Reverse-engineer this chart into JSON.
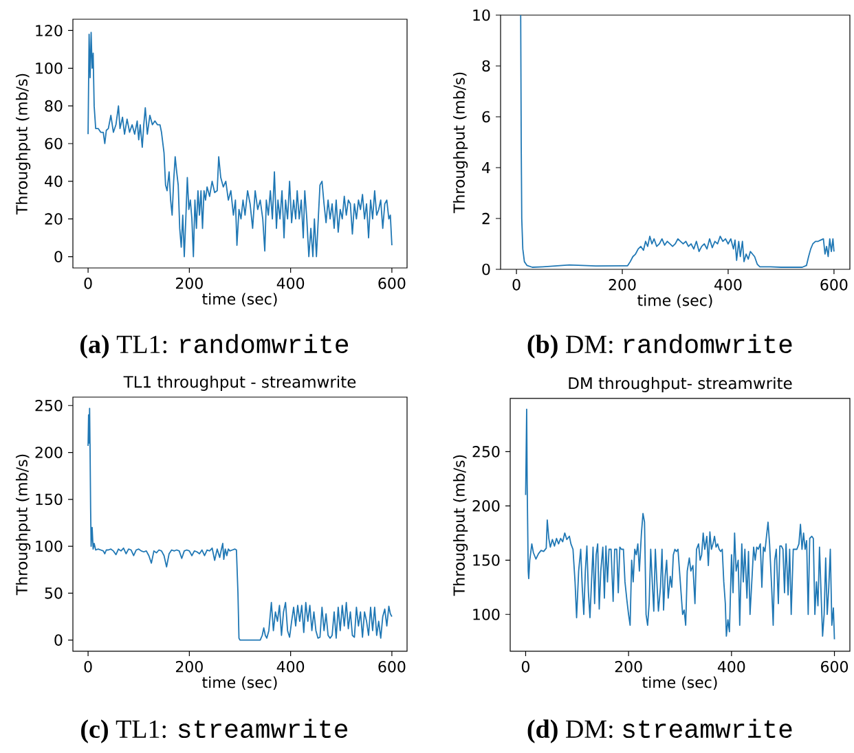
{
  "chart_data": [
    {
      "type": "line",
      "xlabel": "time (sec)",
      "ylabel": "Throughput (mb/s)",
      "color": "#1f77b4",
      "xlim": [
        -30,
        630
      ],
      "ylim": [
        -6,
        126
      ],
      "xticks": [
        0,
        200,
        400,
        600
      ],
      "yticks": [
        0,
        20,
        40,
        60,
        80,
        100,
        120
      ],
      "annotations": [
        "**(a)** TL1:",
        "randomwrite"
      ],
      "x": [
        0,
        2,
        4,
        6,
        8,
        10,
        12,
        15,
        20,
        25,
        30,
        33,
        36,
        40,
        45,
        50,
        55,
        60,
        63,
        68,
        72,
        77,
        82,
        87,
        92,
        97,
        100,
        103,
        107,
        110,
        113,
        117,
        122,
        127,
        132,
        137,
        142,
        145,
        150,
        153,
        156,
        160,
        163,
        166,
        169,
        172,
        175,
        178,
        181,
        184,
        187,
        190,
        193,
        196,
        199,
        202,
        205,
        208,
        211,
        214,
        217,
        220,
        223,
        226,
        229,
        232,
        235,
        240,
        245,
        250,
        255,
        258,
        262,
        267,
        272,
        277,
        282,
        287,
        291,
        294,
        298,
        302,
        306,
        310,
        315,
        320,
        325,
        330,
        335,
        340,
        345,
        349,
        352,
        356,
        360,
        364,
        368,
        372,
        375,
        379,
        383,
        387,
        390,
        394,
        398,
        402,
        406,
        410,
        413,
        417,
        421,
        425,
        428,
        432,
        436,
        440,
        444,
        447,
        451,
        455,
        458,
        462,
        466,
        470,
        474,
        478,
        482,
        486,
        490,
        494,
        498,
        502,
        506,
        510,
        514,
        518,
        522,
        526,
        530,
        534,
        538,
        542,
        546,
        550,
        554,
        558,
        562,
        566,
        570,
        574,
        578,
        582,
        586,
        590,
        594,
        597,
        600
      ],
      "values": [
        65,
        118,
        95,
        119,
        100,
        108,
        80,
        68,
        68,
        66,
        66,
        60,
        67,
        68,
        75,
        66,
        70,
        80,
        68,
        74,
        65,
        73,
        66,
        70,
        65,
        72,
        62,
        70,
        58,
        70,
        79,
        65,
        75,
        70,
        72,
        70,
        70,
        66,
        55,
        38,
        35,
        45,
        30,
        22,
        40,
        53,
        45,
        38,
        15,
        5,
        22,
        0,
        20,
        42,
        25,
        30,
        20,
        0,
        30,
        15,
        35,
        22,
        35,
        15,
        35,
        30,
        37,
        32,
        40,
        34,
        35,
        53,
        42,
        37,
        40,
        30,
        35,
        22,
        30,
        6,
        25,
        20,
        30,
        22,
        35,
        28,
        15,
        35,
        25,
        30,
        20,
        3,
        30,
        22,
        35,
        20,
        45,
        15,
        30,
        20,
        35,
        10,
        30,
        20,
        40,
        18,
        30,
        20,
        35,
        20,
        30,
        10,
        35,
        20,
        0,
        15,
        0,
        20,
        0,
        22,
        38,
        40,
        28,
        18,
        30,
        20,
        28,
        15,
        30,
        13,
        25,
        20,
        32,
        22,
        30,
        28,
        12,
        28,
        20,
        30,
        25,
        33,
        20,
        28,
        10,
        30,
        20,
        35,
        22,
        25,
        30,
        15,
        28,
        30,
        20,
        22,
        6
      ]
    },
    {
      "type": "line",
      "xlabel": "time (sec)",
      "ylabel": "Throughput (mb/s)",
      "color": "#1f77b4",
      "xlim": [
        -30,
        630
      ],
      "ylim": [
        0,
        10
      ],
      "xticks": [
        0,
        200,
        400,
        600
      ],
      "yticks": [
        0,
        2,
        4,
        6,
        8,
        10
      ],
      "annotations": [
        "**(b)** DM:",
        "randomwrite"
      ],
      "x": [
        8,
        9,
        10,
        12,
        15,
        20,
        30,
        50,
        100,
        150,
        200,
        210,
        215,
        220,
        225,
        230,
        235,
        240,
        244,
        248,
        252,
        256,
        260,
        265,
        270,
        275,
        280,
        285,
        290,
        295,
        300,
        305,
        310,
        315,
        320,
        325,
        330,
        335,
        340,
        345,
        350,
        355,
        360,
        365,
        370,
        375,
        380,
        385,
        390,
        395,
        400,
        405,
        410,
        413,
        416,
        420,
        423,
        427,
        430,
        434,
        438,
        442,
        446,
        450,
        455,
        460,
        480,
        500,
        520,
        540,
        548,
        552,
        556,
        560,
        565,
        570,
        575,
        580,
        583,
        586,
        589,
        592,
        595,
        598,
        600
      ],
      "values": [
        10,
        5,
        2,
        0.8,
        0.3,
        0.15,
        0.08,
        0.1,
        0.17,
        0.13,
        0.14,
        0.14,
        0.3,
        0.5,
        0.6,
        0.8,
        0.9,
        0.75,
        1.1,
        0.9,
        1.3,
        1.0,
        1.2,
        0.9,
        1.0,
        1.2,
        0.95,
        1.1,
        1.0,
        0.9,
        1.0,
        1.2,
        1.1,
        1.0,
        1.1,
        0.9,
        1.0,
        0.8,
        1.1,
        0.7,
        0.9,
        1.0,
        0.8,
        1.2,
        0.85,
        1.1,
        1.0,
        1.3,
        1.1,
        1.2,
        1.0,
        1.2,
        0.8,
        1.15,
        0.35,
        1.1,
        0.5,
        1.1,
        0.3,
        0.6,
        0.4,
        0.7,
        0.6,
        0.5,
        0.2,
        0.1,
        0.1,
        0.08,
        0.08,
        0.08,
        0.15,
        0.5,
        0.8,
        1.0,
        1.1,
        1.1,
        1.15,
        1.2,
        0.6,
        0.9,
        0.5,
        1.2,
        0.7,
        1.2,
        0.7
      ]
    },
    {
      "type": "line",
      "title": "TL1 throughput - streamwrite",
      "xlabel": "time (sec)",
      "ylabel": "Throughput (mb/s)",
      "color": "#1f77b4",
      "xlim": [
        -30,
        630
      ],
      "ylim": [
        -12,
        259
      ],
      "xticks": [
        0,
        200,
        400,
        600
      ],
      "yticks": [
        0,
        50,
        100,
        150,
        200,
        250
      ],
      "annotations": [
        "**(c)** TL1:",
        "streamwrite"
      ],
      "x": [
        0,
        1,
        2,
        3,
        4,
        5,
        6,
        8,
        10,
        12,
        15,
        20,
        25,
        30,
        33,
        36,
        40,
        45,
        50,
        55,
        60,
        65,
        70,
        75,
        80,
        85,
        90,
        95,
        100,
        105,
        110,
        115,
        120,
        125,
        130,
        135,
        140,
        145,
        150,
        155,
        160,
        165,
        170,
        175,
        180,
        185,
        190,
        195,
        200,
        205,
        210,
        215,
        220,
        225,
        230,
        235,
        240,
        245,
        250,
        255,
        260,
        263,
        266,
        268,
        271,
        274,
        277,
        280,
        285,
        290,
        293,
        296,
        298,
        300,
        320,
        340,
        344,
        347,
        350,
        353,
        357,
        362,
        366,
        370,
        374,
        378,
        382,
        386,
        390,
        394,
        398,
        402,
        406,
        410,
        414,
        418,
        422,
        426,
        430,
        434,
        438,
        442,
        446,
        450,
        454,
        458,
        462,
        466,
        470,
        474,
        478,
        482,
        486,
        490,
        494,
        498,
        502,
        506,
        510,
        514,
        518,
        522,
        526,
        530,
        534,
        538,
        542,
        546,
        550,
        554,
        558,
        562,
        566,
        570,
        574,
        578,
        582,
        586,
        590,
        594,
        597,
        600
      ],
      "values": [
        207,
        240,
        210,
        247,
        200,
        140,
        100,
        120,
        97,
        103,
        96,
        97,
        96,
        95,
        92,
        96,
        96,
        97,
        95,
        91,
        97,
        95,
        98,
        92,
        97,
        96,
        90,
        96,
        97,
        95,
        94,
        95,
        90,
        82,
        95,
        93,
        96,
        95,
        90,
        78,
        92,
        96,
        95,
        96,
        95,
        87,
        95,
        96,
        95,
        90,
        95,
        94,
        92,
        96,
        90,
        96,
        95,
        98,
        85,
        97,
        88,
        96,
        103,
        86,
        97,
        90,
        97,
        95,
        96,
        97,
        96,
        50,
        2,
        0,
        0,
        0,
        5,
        13,
        5,
        2,
        10,
        40,
        10,
        30,
        20,
        37,
        5,
        30,
        40,
        10,
        3,
        20,
        35,
        15,
        37,
        20,
        37,
        8,
        40,
        20,
        37,
        10,
        30,
        10,
        2,
        3,
        35,
        10,
        28,
        5,
        2,
        5,
        30,
        2,
        35,
        10,
        37,
        15,
        40,
        12,
        30,
        5,
        3,
        35,
        15,
        30,
        3,
        30,
        20,
        5,
        35,
        10,
        35,
        5,
        20,
        2,
        25,
        33,
        15,
        36,
        28,
        25
      ]
    },
    {
      "type": "line",
      "title": "DM throughput- streamwrite",
      "xlabel": "time (sec)",
      "ylabel": "Throughput (mb/s)",
      "color": "#1f77b4",
      "xlim": [
        -30,
        630
      ],
      "ylim": [
        66,
        299
      ],
      "xticks": [
        0,
        200,
        400,
        600
      ],
      "yticks": [
        100,
        150,
        200,
        250
      ],
      "annotations": [
        "**(d)** DM:",
        "streamwrite"
      ],
      "x": [
        0,
        2,
        3,
        5,
        6,
        8,
        12,
        15,
        20,
        25,
        30,
        35,
        40,
        42,
        45,
        48,
        52,
        56,
        60,
        64,
        68,
        72,
        76,
        80,
        85,
        88,
        92,
        96,
        99,
        103,
        107,
        110,
        113,
        116,
        119,
        122,
        125,
        128,
        131,
        134,
        137,
        140,
        143,
        146,
        150,
        153,
        156,
        159,
        162,
        166,
        170,
        173,
        177,
        180,
        183,
        186,
        190,
        193,
        197,
        200,
        203,
        206,
        209,
        212,
        215,
        218,
        221,
        225,
        228,
        231,
        234,
        237,
        240,
        243,
        246,
        249,
        252,
        255,
        258,
        262,
        265,
        268,
        271,
        274,
        277,
        281,
        284,
        287,
        290,
        293,
        296,
        299,
        302,
        305,
        308,
        311,
        314,
        318,
        321,
        325,
        329,
        332,
        336,
        339,
        342,
        345,
        348,
        352,
        355,
        358,
        361,
        364,
        367,
        370,
        373,
        376,
        379,
        382,
        385,
        388,
        390,
        393,
        396,
        400,
        403,
        406,
        409,
        413,
        416,
        420,
        423,
        426,
        430,
        433,
        436,
        440,
        443,
        446,
        449,
        452,
        456,
        459,
        462,
        465,
        468,
        471,
        474,
        478,
        481,
        484,
        487,
        491,
        494,
        497,
        500,
        503,
        506,
        510,
        513,
        516,
        520,
        523,
        527,
        531,
        534,
        537,
        540,
        543,
        546,
        549,
        552,
        556,
        559,
        562,
        565,
        568,
        571,
        574,
        577,
        580,
        583,
        586,
        589,
        592,
        595,
        598,
        600
      ],
      "values": [
        210,
        289,
        220,
        140,
        133,
        150,
        165,
        157,
        151,
        156,
        159,
        158,
        161,
        187,
        170,
        162,
        169,
        163,
        170,
        165,
        170,
        167,
        175,
        169,
        172,
        165,
        160,
        130,
        97,
        140,
        160,
        125,
        100,
        140,
        163,
        120,
        97,
        130,
        162,
        110,
        155,
        165,
        105,
        140,
        162,
        115,
        163,
        130,
        160,
        160,
        112,
        160,
        160,
        120,
        162,
        160,
        160,
        130,
        112,
        100,
        90,
        150,
        130,
        160,
        155,
        165,
        140,
        175,
        193,
        185,
        100,
        90,
        110,
        160,
        130,
        103,
        160,
        130,
        103,
        125,
        160,
        104,
        135,
        150,
        115,
        135,
        125,
        155,
        160,
        158,
        160,
        140,
        120,
        100,
        104,
        90,
        140,
        152,
        140,
        145,
        110,
        160,
        165,
        150,
        155,
        175,
        160,
        172,
        145,
        176,
        160,
        165,
        172,
        162,
        165,
        160,
        158,
        160,
        130,
        110,
        80,
        95,
        84,
        155,
        120,
        175,
        140,
        150,
        90,
        165,
        130,
        160,
        115,
        158,
        100,
        135,
        162,
        150,
        162,
        160,
        165,
        125,
        162,
        158,
        172,
        185,
        165,
        125,
        90,
        150,
        160,
        110,
        163,
        163,
        160,
        120,
        165,
        118,
        160,
        100,
        160,
        160,
        160,
        165,
        183,
        160,
        175,
        160,
        168,
        100,
        170,
        172,
        170,
        100,
        130,
        108,
        162,
        120,
        80,
        100,
        152,
        100,
        125,
        160,
        90,
        106,
        77
      ]
    }
  ]
}
